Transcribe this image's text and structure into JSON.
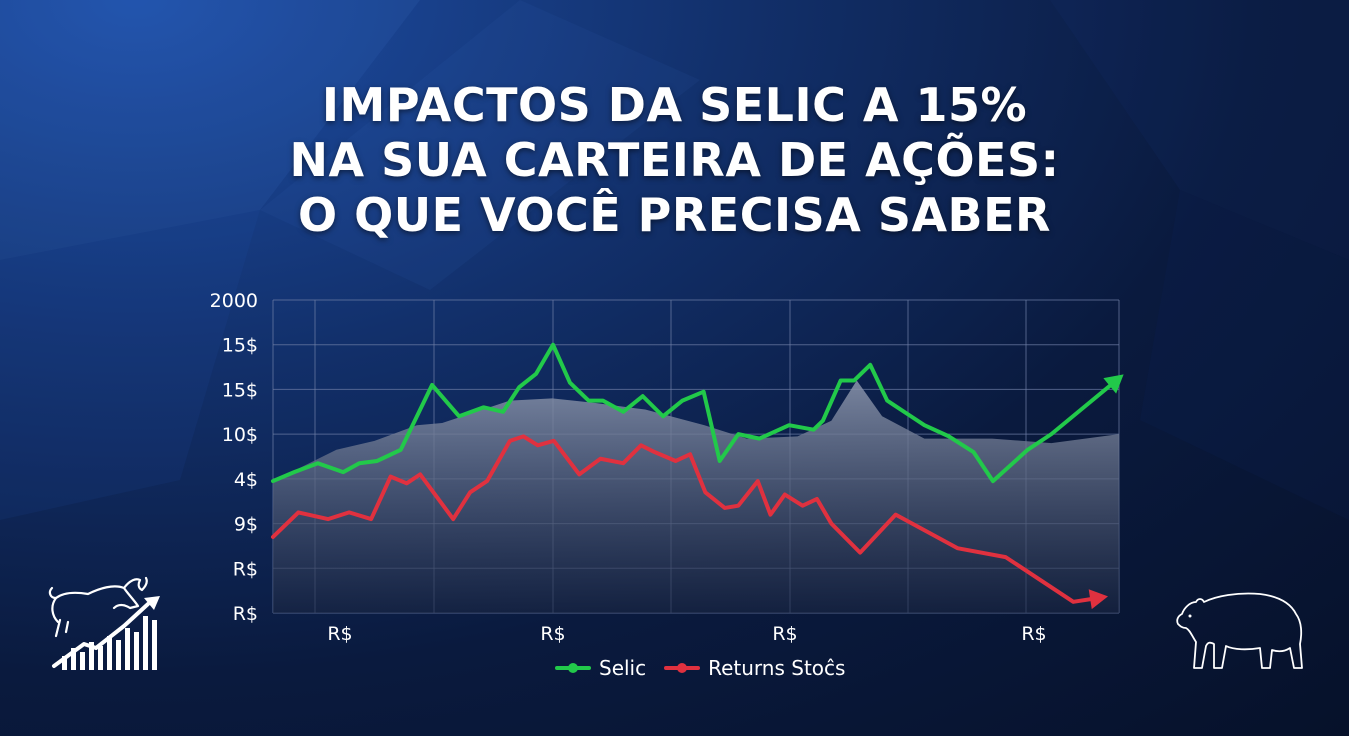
{
  "title_lines": [
    "IMPACTOS DA SELIC A 15%",
    "NA SUA CARTEIRA DE AÇÕES:",
    "O QUE VOCÊ PRECISA SABER"
  ],
  "colors": {
    "selic": "#22c94a",
    "returns": "#e0313f",
    "area": "#8c96ad",
    "grid": "#6f7fa6"
  },
  "icons": {
    "left": "bull-bar-chart-icon",
    "right": "bear-icon"
  },
  "chart_data": {
    "type": "line",
    "y_tick_labels": [
      "2000",
      "15$",
      "15$",
      "10$",
      "4$",
      "9$",
      "R$",
      "R$"
    ],
    "x_tick_labels": [
      "R$",
      "R$",
      "R$",
      "R$"
    ],
    "grid": true,
    "legend_position": "bottom-center",
    "x_range": [
      0,
      100
    ],
    "y_range": [
      0,
      7
    ],
    "series": [
      {
        "name": "Selic",
        "color": "#22c94a",
        "arrow_end": true,
        "x": [
          0,
          2.5,
          5.3,
          8.3,
          10.2,
          12.3,
          15.1,
          18.8,
          22.0,
          24.9,
          27.2,
          29.1,
          31.1,
          33.1,
          35.1,
          37.3,
          39.0,
          41.4,
          43.7,
          46.1,
          48.4,
          50.9,
          52.8,
          55.0,
          57.5,
          61.0,
          63.9,
          65.0,
          67.1,
          68.7,
          70.6,
          72.6,
          75.4,
          77.0,
          79.9,
          82.8,
          85.1,
          89.2,
          92.0,
          100
        ],
        "y": [
          2.95,
          3.15,
          3.35,
          3.15,
          3.35,
          3.4,
          3.65,
          5.1,
          4.4,
          4.6,
          4.5,
          5.05,
          5.35,
          6.0,
          5.15,
          4.75,
          4.75,
          4.5,
          4.85,
          4.4,
          4.75,
          4.95,
          3.4,
          4.0,
          3.9,
          4.2,
          4.1,
          4.3,
          5.2,
          5.2,
          5.55,
          4.75,
          4.4,
          4.2,
          3.95,
          3.6,
          2.95,
          3.65,
          4.0,
          5.25
        ]
      },
      {
        "name": "Returns Stoĉs",
        "color": "#e0313f",
        "arrow_end": true,
        "x": [
          0,
          3.0,
          6.5,
          9.0,
          11.6,
          13.9,
          15.8,
          17.4,
          21.3,
          23.3,
          25.3,
          28.0,
          29.6,
          31.3,
          33.2,
          36.2,
          38.7,
          41.4,
          43.5,
          45.1,
          47.6,
          49.3,
          51.1,
          53.4,
          55.0,
          57.3,
          58.8,
          60.5,
          62.6,
          64.3,
          66.0,
          69.4,
          73.6,
          80.9,
          86.6,
          94.6,
          98.0
        ],
        "y": [
          1.7,
          2.25,
          2.1,
          2.25,
          2.1,
          3.05,
          2.9,
          3.1,
          2.1,
          2.7,
          2.95,
          3.85,
          3.95,
          3.75,
          3.85,
          3.1,
          3.45,
          3.35,
          3.75,
          3.6,
          3.4,
          3.55,
          2.7,
          2.35,
          2.4,
          2.95,
          2.2,
          2.65,
          2.4,
          2.55,
          2.0,
          1.35,
          2.2,
          1.45,
          1.25,
          0.25,
          0.35
        ]
      }
    ],
    "background_area": {
      "x": [
        0,
        7.5,
        12.0,
        17.0,
        20.0,
        28.0,
        33.0,
        38.0,
        44.0,
        51.0,
        56.0,
        62.0,
        66.0,
        69.0,
        72.0,
        77.0,
        85.0,
        92.0,
        100
      ],
      "y": [
        2.95,
        3.65,
        3.85,
        4.2,
        4.25,
        4.75,
        4.8,
        4.7,
        4.55,
        4.2,
        3.9,
        3.95,
        4.3,
        5.2,
        4.4,
        3.9,
        3.9,
        3.8,
        4.0
      ]
    }
  }
}
